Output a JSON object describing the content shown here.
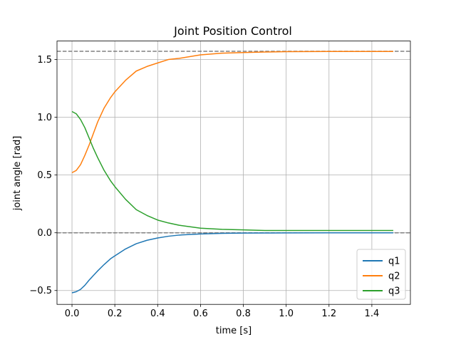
{
  "chart_data": {
    "type": "line",
    "title": "Joint Position Control",
    "xlabel": "time [s]",
    "ylabel": "joint angle [rad]",
    "xlim": [
      -0.07,
      1.58
    ],
    "ylim": [
      -0.62,
      1.66
    ],
    "grid": true,
    "legend_placement": "lower-right",
    "x_ticks": [
      0.0,
      0.2,
      0.4,
      0.6,
      0.8,
      1.0,
      1.2,
      1.4
    ],
    "x_tick_labels": [
      "0.0",
      "0.2",
      "0.4",
      "0.6",
      "0.8",
      "1.0",
      "1.2",
      "1.4"
    ],
    "y_ticks": [
      -0.5,
      0.0,
      0.5,
      1.0,
      1.5
    ],
    "y_tick_labels": [
      "−0.5",
      "0.0",
      "0.5",
      "1.0",
      "1.5"
    ],
    "reference_lines": [
      {
        "y": 1.5708,
        "color": "#808080",
        "style": "dashed"
      },
      {
        "y": 0.0,
        "color": "#808080",
        "style": "dashed"
      }
    ],
    "series": [
      {
        "name": "q1",
        "color": "#1f77b4",
        "x": [
          0.0,
          0.02,
          0.04,
          0.06,
          0.08,
          0.1,
          0.12,
          0.15,
          0.18,
          0.2,
          0.25,
          0.3,
          0.35,
          0.4,
          0.45,
          0.5,
          0.6,
          0.7,
          0.8,
          0.9,
          1.0,
          1.2,
          1.4,
          1.5
        ],
        "y": [
          -0.52,
          -0.51,
          -0.49,
          -0.455,
          -0.41,
          -0.37,
          -0.33,
          -0.275,
          -0.225,
          -0.2,
          -0.14,
          -0.095,
          -0.065,
          -0.045,
          -0.03,
          -0.02,
          -0.01,
          -0.005,
          -0.003,
          -0.002,
          -0.001,
          0.0,
          0.0,
          0.0
        ]
      },
      {
        "name": "q2",
        "color": "#ff7f0e",
        "x": [
          0.0,
          0.02,
          0.04,
          0.06,
          0.08,
          0.1,
          0.12,
          0.15,
          0.18,
          0.2,
          0.25,
          0.3,
          0.35,
          0.4,
          0.45,
          0.5,
          0.6,
          0.7,
          0.8,
          0.9,
          1.0,
          1.2,
          1.4,
          1.5
        ],
        "y": [
          0.52,
          0.54,
          0.59,
          0.67,
          0.76,
          0.86,
          0.96,
          1.08,
          1.17,
          1.22,
          1.32,
          1.4,
          1.44,
          1.47,
          1.5,
          1.51,
          1.54,
          1.555,
          1.56,
          1.565,
          1.568,
          1.57,
          1.57,
          1.57
        ]
      },
      {
        "name": "q3",
        "color": "#2ca02c",
        "x": [
          0.0,
          0.02,
          0.04,
          0.06,
          0.08,
          0.1,
          0.12,
          0.15,
          0.18,
          0.2,
          0.25,
          0.3,
          0.35,
          0.4,
          0.45,
          0.5,
          0.6,
          0.7,
          0.8,
          0.9,
          1.0,
          1.2,
          1.4,
          1.5
        ],
        "y": [
          1.05,
          1.03,
          0.98,
          0.91,
          0.82,
          0.73,
          0.65,
          0.54,
          0.45,
          0.4,
          0.29,
          0.2,
          0.15,
          0.11,
          0.085,
          0.065,
          0.04,
          0.03,
          0.025,
          0.02,
          0.02,
          0.02,
          0.02,
          0.02
        ]
      }
    ]
  }
}
